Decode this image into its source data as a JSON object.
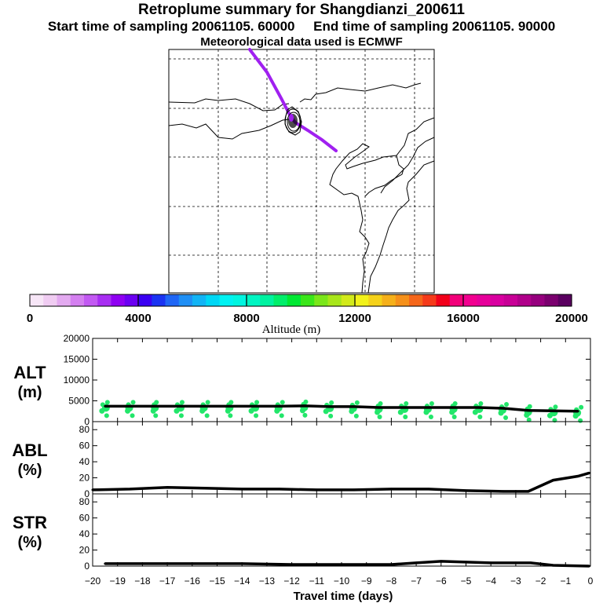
{
  "title": "Retroplume summary for Shangdianzi_200611",
  "sampling": {
    "start_label": "Start time of sampling 20061105. 60000",
    "end_label": "End time of sampling 20061105. 90000"
  },
  "met_label": "Meteorological data used is ECMWF",
  "colorbar": {
    "title": "Altitude (m)",
    "ticks": [
      "0",
      "4000",
      "8000",
      "12000",
      "16000",
      "20000"
    ],
    "colors": [
      "#f7e6f7",
      "#f0ccf2",
      "#e3aaf0",
      "#d47ff0",
      "#c259f2",
      "#a82ef2",
      "#8f00f2",
      "#6b00f2",
      "#3a00f2",
      "#1a33f2",
      "#1f66f5",
      "#1f8ff5",
      "#12b4f5",
      "#00d7f5",
      "#00f2f2",
      "#00f5e0",
      "#00f5c2",
      "#00f2a0",
      "#00ee6a",
      "#00e833",
      "#3ae61a",
      "#7ae61a",
      "#a8e61a",
      "#d2ea1a",
      "#f2f21a",
      "#f5d21a",
      "#f5b01a",
      "#f5901a",
      "#f5661a",
      "#f53a1a",
      "#f2001a",
      "#f2007a",
      "#f20090",
      "#e6009a",
      "#d900a0",
      "#c80096",
      "#b0008a",
      "#96007e",
      "#7a006e",
      "#5a0060"
    ]
  },
  "map": {
    "line_color": "#a020f0",
    "grid": "dashed"
  },
  "chart_data": [
    {
      "type": "line",
      "panel": "ALT",
      "ylabel": "ALT (m)",
      "ylim": [
        0,
        20000
      ],
      "yticks": [
        "0",
        "5000",
        "10000",
        "15000",
        "20000"
      ],
      "x": [
        -19.5,
        -18.5,
        -17.5,
        -16.5,
        -15.5,
        -14.5,
        -13.5,
        -12.5,
        -11.5,
        -10.5,
        -9.5,
        -8.5,
        -7.5,
        -6.5,
        -5.5,
        -4.5,
        -3.5,
        -2.5,
        -1.5,
        -0.5
      ],
      "values": [
        3700,
        3700,
        3700,
        3700,
        3700,
        3700,
        3700,
        3700,
        3800,
        3600,
        3600,
        3400,
        3400,
        3400,
        3400,
        3400,
        3200,
        2700,
        2600,
        2500
      ],
      "scatter_color": "#22e66a"
    },
    {
      "type": "line",
      "panel": "ABL",
      "ylabel": "ABL (%)",
      "ylim": [
        0,
        90
      ],
      "yticks": [
        "0",
        "20",
        "40",
        "60",
        "80"
      ],
      "x": [
        -20,
        -18.5,
        -17,
        -15.5,
        -14,
        -12.5,
        -11,
        -9.5,
        -8,
        -6.5,
        -5,
        -3.5,
        -2.5,
        -1.5,
        -0.5,
        -0.05
      ],
      "values": [
        5,
        6,
        8,
        7,
        6,
        6,
        5,
        5,
        6,
        6,
        4,
        3,
        3,
        17,
        22,
        26
      ]
    },
    {
      "type": "line",
      "panel": "STR",
      "ylabel": "STR (%)",
      "ylim": [
        0,
        90
      ],
      "yticks": [
        "0",
        "20",
        "40",
        "60",
        "80"
      ],
      "x": [
        -19.5,
        -18,
        -16,
        -14,
        -12,
        -10,
        -8,
        -7,
        -6,
        -5,
        -4,
        -3,
        -2.4,
        -1.5,
        -0.05
      ],
      "values": [
        3,
        3,
        3,
        3,
        2,
        2,
        2,
        4,
        6,
        5,
        4,
        4,
        4,
        1,
        0
      ]
    }
  ],
  "xaxis": {
    "label": "Travel time (days)",
    "ticks": [
      "−20",
      "−19",
      "−18",
      "−17",
      "−16",
      "−15",
      "−14",
      "−13",
      "−12",
      "−11",
      "−10",
      "−9",
      "−8",
      "−7",
      "−6",
      "−5",
      "−4",
      "−3",
      "−2",
      "−1",
      "0"
    ]
  }
}
